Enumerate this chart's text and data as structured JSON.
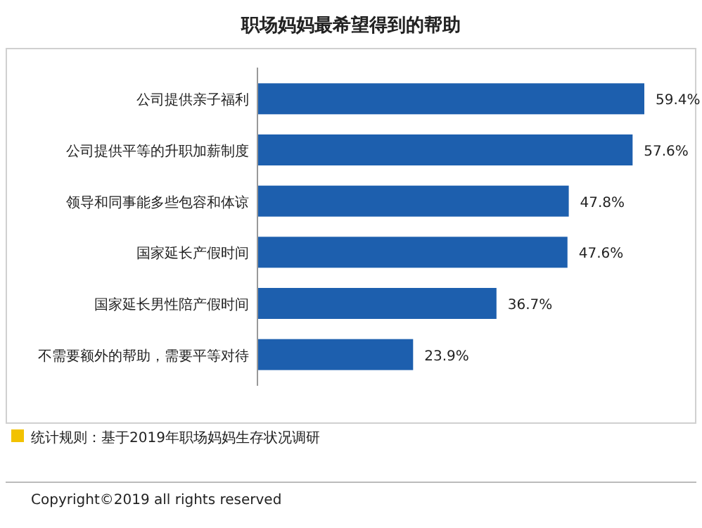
{
  "chart_data": {
    "type": "bar",
    "orientation": "horizontal",
    "title": "职场妈妈最希望得到的帮助",
    "categories": [
      "公司提供亲子福利",
      "公司提供平等的升职加薪制度",
      "领导和同事能多些包容和体谅",
      "国家延长产假时间",
      "国家延长男性陪产假时间",
      "不需要额外的帮助，需要平等对待"
    ],
    "values": [
      59.4,
      57.6,
      47.8,
      47.6,
      36.7,
      23.9
    ],
    "value_labels": [
      "59.4%",
      "57.6%",
      "47.8%",
      "47.6%",
      "36.7%",
      "23.9%"
    ],
    "color": "#1d5fae",
    "annotations": [
      "统计规则：基于2019年职场妈妈生存状况调研",
      "Copyright©2019 all rights reserved"
    ]
  }
}
